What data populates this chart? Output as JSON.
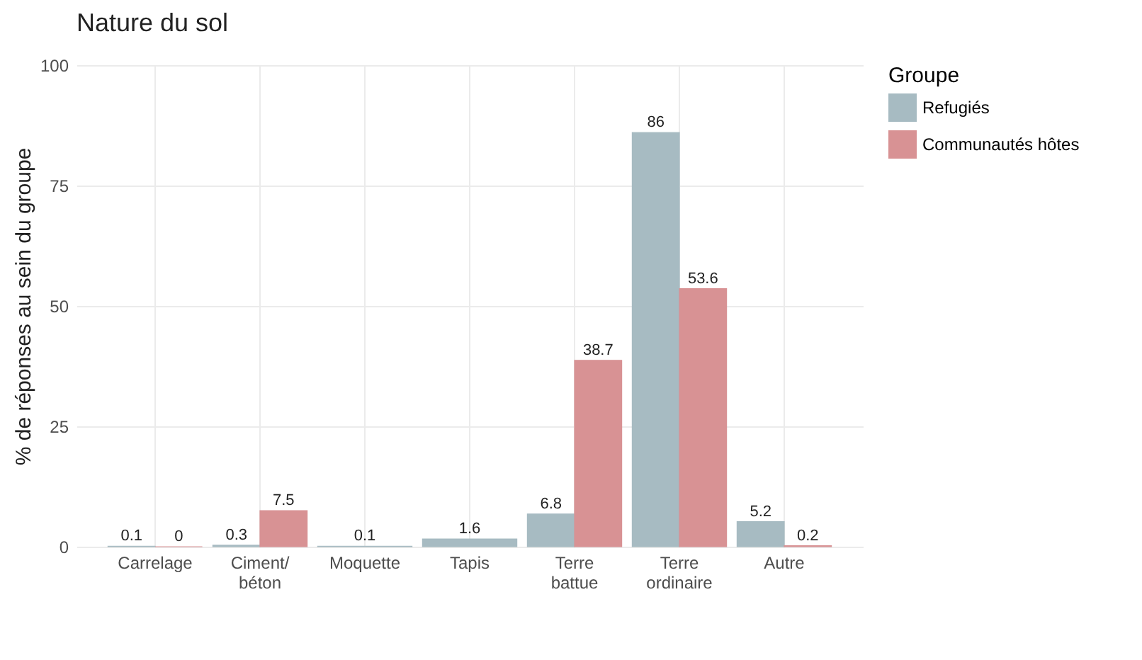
{
  "chart_data": {
    "type": "bar",
    "title": "Nature du sol",
    "ylabel": "% de réponses au sein du groupe",
    "legend_title": "Groupe",
    "categories": [
      "Carrelage",
      "Ciment/ béton",
      "Moquette",
      "Tapis",
      "Terre battue",
      "Terre ordinaire",
      "Autre"
    ],
    "series": [
      {
        "name": "Refugiés",
        "color": "#a7bbc2",
        "values": [
          0.1,
          0.3,
          0.1,
          1.6,
          6.8,
          86,
          5.2
        ]
      },
      {
        "name": "Communautés hôtes",
        "color": "#d89294",
        "values": [
          0,
          7.5,
          null,
          null,
          38.7,
          53.6,
          0.2
        ]
      }
    ],
    "ylim": [
      0,
      100
    ],
    "yticks": [
      0,
      25,
      50,
      75,
      100
    ],
    "grid": true,
    "legend": "right",
    "data_labels": true
  }
}
